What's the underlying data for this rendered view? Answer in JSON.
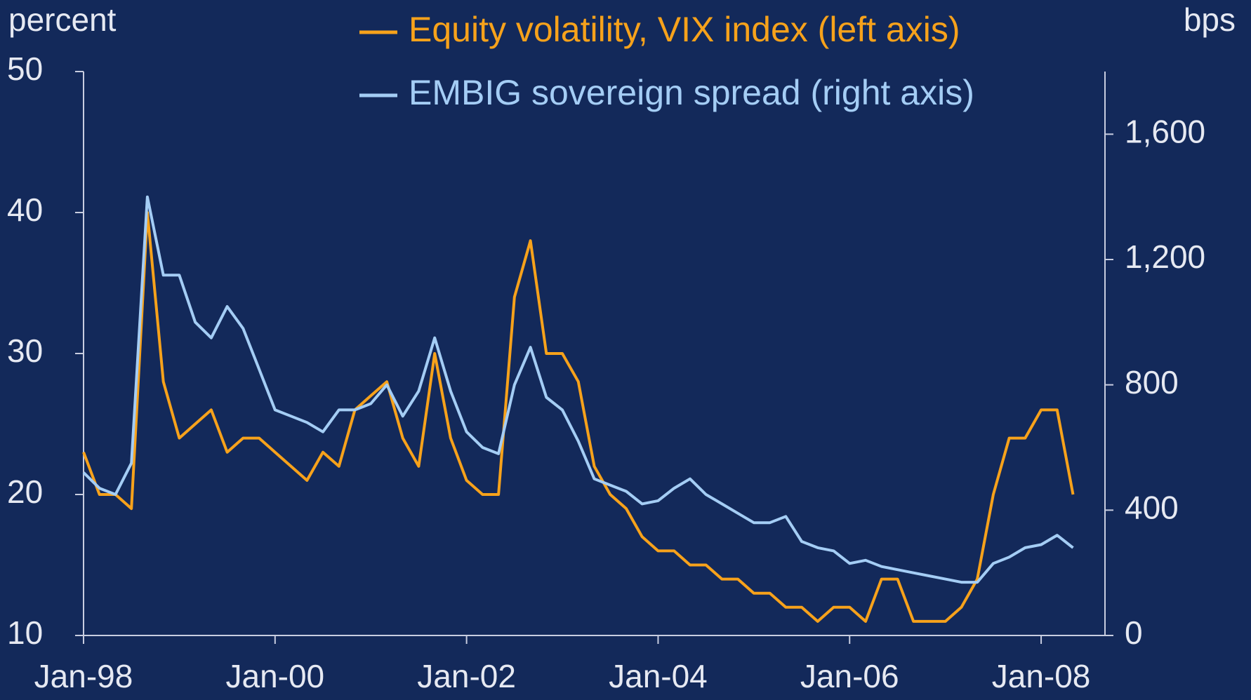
{
  "chart_data": {
    "type": "line",
    "y_label": "percent",
    "y2_label": "bps",
    "categories": [
      "Jan-98",
      "Mar-98",
      "May-98",
      "Jul-98",
      "Sep-98",
      "Nov-98",
      "Jan-99",
      "Mar-99",
      "May-99",
      "Jul-99",
      "Sep-99",
      "Nov-99",
      "Jan-00",
      "Mar-00",
      "May-00",
      "Jul-00",
      "Sep-00",
      "Nov-00",
      "Jan-01",
      "Mar-01",
      "May-01",
      "Jul-01",
      "Sep-01",
      "Nov-01",
      "Jan-02",
      "Mar-02",
      "May-02",
      "Jul-02",
      "Sep-02",
      "Nov-02",
      "Jan-03",
      "Mar-03",
      "May-03",
      "Jul-03",
      "Sep-03",
      "Nov-03",
      "Jan-04",
      "Mar-04",
      "May-04",
      "Jul-04",
      "Sep-04",
      "Nov-04",
      "Jan-05",
      "Mar-05",
      "May-05",
      "Jul-05",
      "Sep-05",
      "Nov-05",
      "Jan-06",
      "Mar-06",
      "May-06",
      "Jul-06",
      "Sep-06",
      "Nov-06",
      "Jan-07",
      "Mar-07",
      "May-07",
      "Jul-07",
      "Sep-07",
      "Nov-07",
      "Jan-08",
      "Mar-08",
      "May-08"
    ],
    "series": [
      {
        "name": "Equity volatility, VIX index (left axis)",
        "color": "#f7a21b",
        "axis": "y",
        "values": [
          23,
          20,
          20,
          19,
          40,
          28,
          24,
          25,
          26,
          23,
          24,
          24,
          23,
          22,
          21,
          23,
          22,
          26,
          27,
          28,
          24,
          22,
          30,
          24,
          21,
          20,
          20,
          34,
          38,
          30,
          30,
          28,
          22,
          20,
          19,
          17,
          16,
          16,
          15,
          15,
          14,
          14,
          13,
          13,
          12,
          12,
          11,
          12,
          12,
          11,
          14,
          14,
          11,
          11,
          11,
          12,
          14,
          20,
          24,
          24,
          26,
          26,
          20
        ]
      },
      {
        "name": "EMBIG sovereign spread (right axis)",
        "color": "#a4cdf5",
        "axis": "y2",
        "values": [
          520,
          470,
          450,
          550,
          1400,
          1150,
          1150,
          1000,
          950,
          1050,
          980,
          850,
          720,
          700,
          680,
          650,
          720,
          720,
          740,
          800,
          700,
          780,
          950,
          780,
          650,
          600,
          580,
          800,
          920,
          760,
          720,
          620,
          500,
          480,
          460,
          420,
          430,
          470,
          500,
          450,
          420,
          390,
          360,
          360,
          380,
          300,
          280,
          270,
          230,
          240,
          220,
          210,
          200,
          190,
          180,
          170,
          170,
          230,
          250,
          280,
          290,
          320,
          280
        ]
      }
    ],
    "ylim": [
      10,
      50
    ],
    "yticks": [
      10,
      20,
      30,
      40,
      50
    ],
    "y2lim": [
      0,
      1800
    ],
    "y2ticks": [
      0,
      400,
      800,
      {
        "value": 1200,
        "label": "1,200"
      },
      {
        "value": 1600,
        "label": "1,600"
      }
    ],
    "xtick_every": 12
  }
}
